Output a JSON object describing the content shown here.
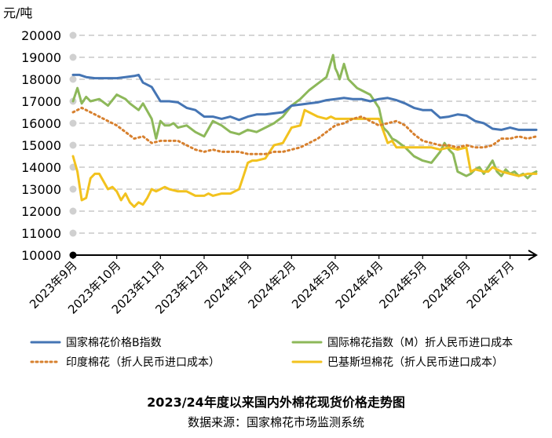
{
  "chart_data": {
    "type": "line",
    "title": "2023/24年度以来国内外棉花现货价格走势图",
    "source": "数据来源：国家棉花市场监测系统",
    "ylabel": "元/吨",
    "ylim": [
      10000,
      20000
    ],
    "yticks": [
      "20000",
      "19000",
      "18000",
      "17000",
      "16000",
      "15000",
      "14000",
      "13000",
      "12000",
      "11000",
      "10000"
    ],
    "xticks": [
      "2023年9月",
      "2023年10月",
      "2023年11月",
      "2023年12月",
      "2024年1月",
      "2024年2月",
      "2024年3月",
      "2024年4月",
      "2024年5月",
      "2024年6月",
      "2024年7月"
    ],
    "xrange": [
      0,
      10.6
    ],
    "grid": true,
    "legend_position": "bottom",
    "series": [
      {
        "name": "国家棉花价格B指数",
        "color": "#4575b4",
        "style": "solid",
        "x": [
          0,
          0.15,
          0.3,
          0.5,
          0.8,
          1.0,
          1.2,
          1.4,
          1.5,
          1.6,
          1.8,
          2.0,
          2.2,
          2.4,
          2.6,
          2.8,
          3.0,
          3.2,
          3.4,
          3.6,
          3.8,
          4.0,
          4.2,
          4.4,
          4.6,
          4.8,
          5.0,
          5.2,
          5.4,
          5.6,
          5.8,
          6.0,
          6.2,
          6.4,
          6.6,
          6.8,
          7.0,
          7.2,
          7.4,
          7.6,
          7.8,
          8.0,
          8.2,
          8.4,
          8.6,
          8.8,
          9.0,
          9.2,
          9.4,
          9.6,
          9.8,
          10.0,
          10.2,
          10.4,
          10.6
        ],
        "values": [
          18200,
          18200,
          18100,
          18050,
          18050,
          18050,
          18100,
          18150,
          18200,
          17850,
          17650,
          17000,
          17000,
          16950,
          16700,
          16600,
          16300,
          16300,
          16200,
          16300,
          16150,
          16300,
          16400,
          16400,
          16450,
          16500,
          16800,
          16850,
          16900,
          16950,
          17050,
          17100,
          17150,
          17100,
          17100,
          17000,
          17100,
          17150,
          17050,
          16900,
          16700,
          16600,
          16600,
          16250,
          16300,
          16400,
          16350,
          16100,
          16000,
          15750,
          15700,
          15800,
          15700,
          15700,
          15700
        ]
      },
      {
        "name": "国际棉花指数（M）折人民币进口成本",
        "color": "#8db85a",
        "style": "solid",
        "x": [
          0,
          0.1,
          0.2,
          0.3,
          0.4,
          0.6,
          0.8,
          1.0,
          1.2,
          1.3,
          1.5,
          1.6,
          1.8,
          1.9,
          2.0,
          2.1,
          2.2,
          2.3,
          2.4,
          2.6,
          2.8,
          3.0,
          3.2,
          3.4,
          3.6,
          3.8,
          4.0,
          4.2,
          4.4,
          4.6,
          4.8,
          5.0,
          5.2,
          5.4,
          5.6,
          5.8,
          5.95,
          6.0,
          6.05,
          6.1,
          6.2,
          6.3,
          6.4,
          6.5,
          6.6,
          6.8,
          7.0,
          7.1,
          7.2,
          7.3,
          7.4,
          7.6,
          7.8,
          8.0,
          8.2,
          8.4,
          8.5,
          8.6,
          8.7,
          8.8,
          9.0,
          9.1,
          9.2,
          9.3,
          9.4,
          9.5,
          9.6,
          9.7,
          9.8,
          9.9,
          10.0,
          10.1,
          10.2,
          10.3,
          10.4,
          10.5,
          10.6
        ],
        "values": [
          17000,
          17600,
          16900,
          17200,
          17000,
          17100,
          16800,
          17300,
          17100,
          16900,
          16600,
          16900,
          16200,
          15300,
          16100,
          15900,
          15900,
          16000,
          15800,
          15900,
          15600,
          15400,
          16100,
          15900,
          15600,
          15500,
          15700,
          15600,
          15800,
          16000,
          16300,
          16800,
          17100,
          17500,
          17800,
          18100,
          19100,
          18500,
          18300,
          18000,
          18700,
          18000,
          17800,
          17600,
          17500,
          17300,
          16700,
          15800,
          15600,
          15300,
          15200,
          14900,
          14500,
          14300,
          14200,
          14700,
          15100,
          14800,
          14600,
          13800,
          13600,
          13700,
          13900,
          14000,
          13700,
          14000,
          14300,
          13800,
          13600,
          13900,
          13700,
          13800,
          13600,
          13700,
          13500,
          13700,
          13800
        ]
      },
      {
        "name": "印度棉花（折人民币进口成本）",
        "color": "#d7802e",
        "style": "dotted",
        "x": [
          0,
          0.2,
          0.4,
          0.6,
          0.8,
          1.0,
          1.2,
          1.4,
          1.6,
          1.8,
          2.0,
          2.2,
          2.4,
          2.6,
          2.8,
          3.0,
          3.2,
          3.4,
          3.6,
          3.8,
          4.0,
          4.2,
          4.4,
          4.6,
          4.8,
          5.0,
          5.2,
          5.4,
          5.6,
          5.8,
          6.0,
          6.2,
          6.4,
          6.6,
          6.8,
          7.0,
          7.2,
          7.4,
          7.6,
          7.8,
          8.0,
          8.2,
          8.4,
          8.6,
          8.8,
          9.0,
          9.2,
          9.4,
          9.6,
          9.8,
          10.0,
          10.2,
          10.4,
          10.6
        ],
        "values": [
          16500,
          16700,
          16500,
          16300,
          16100,
          15900,
          15600,
          15300,
          15400,
          15100,
          15200,
          15200,
          15200,
          15000,
          14800,
          14700,
          14800,
          14700,
          14700,
          14700,
          14600,
          14600,
          14600,
          14700,
          14700,
          14800,
          14900,
          15100,
          15300,
          15600,
          15900,
          16000,
          16200,
          16300,
          16100,
          15900,
          16000,
          16100,
          15900,
          15500,
          15200,
          15100,
          15000,
          15000,
          14900,
          15000,
          14900,
          14900,
          15000,
          15300,
          15300,
          15400,
          15300,
          15400
        ]
      },
      {
        "name": "巴基斯坦棉花（折人民币进口成本）",
        "color": "#f2c21e",
        "style": "solid",
        "x": [
          0,
          0.1,
          0.2,
          0.3,
          0.4,
          0.5,
          0.6,
          0.8,
          0.9,
          1.0,
          1.1,
          1.2,
          1.3,
          1.4,
          1.5,
          1.6,
          1.7,
          1.8,
          1.9,
          2.0,
          2.1,
          2.2,
          2.4,
          2.6,
          2.8,
          3.0,
          3.1,
          3.2,
          3.4,
          3.6,
          3.8,
          3.9,
          4.0,
          4.1,
          4.2,
          4.4,
          4.6,
          4.8,
          5.0,
          5.2,
          5.3,
          5.4,
          5.6,
          5.8,
          5.9,
          6.0,
          6.2,
          6.4,
          6.6,
          6.8,
          7.0,
          7.2,
          7.3,
          7.4,
          7.6,
          7.8,
          8.0,
          8.2,
          8.4,
          8.6,
          8.8,
          9.0,
          9.1,
          9.2,
          9.4,
          9.5,
          9.6,
          9.8,
          10.0,
          10.2,
          10.4,
          10.6
        ],
        "values": [
          14500,
          13800,
          12500,
          12600,
          13500,
          13700,
          13700,
          13000,
          13100,
          12900,
          12500,
          12800,
          12400,
          12200,
          12400,
          12300,
          12600,
          13000,
          12900,
          13000,
          13100,
          13000,
          12900,
          12900,
          12700,
          12700,
          12800,
          12700,
          12800,
          12800,
          13000,
          13600,
          14200,
          14300,
          14300,
          14400,
          15000,
          15100,
          15800,
          15900,
          16600,
          16500,
          16300,
          16200,
          16300,
          16200,
          16200,
          16200,
          16200,
          16200,
          16200,
          15100,
          15200,
          14900,
          14900,
          14900,
          14900,
          14900,
          14800,
          14900,
          14800,
          14900,
          13800,
          13900,
          13800,
          13800,
          14000,
          13800,
          13700,
          13600,
          13700,
          13700
        ]
      }
    ]
  }
}
